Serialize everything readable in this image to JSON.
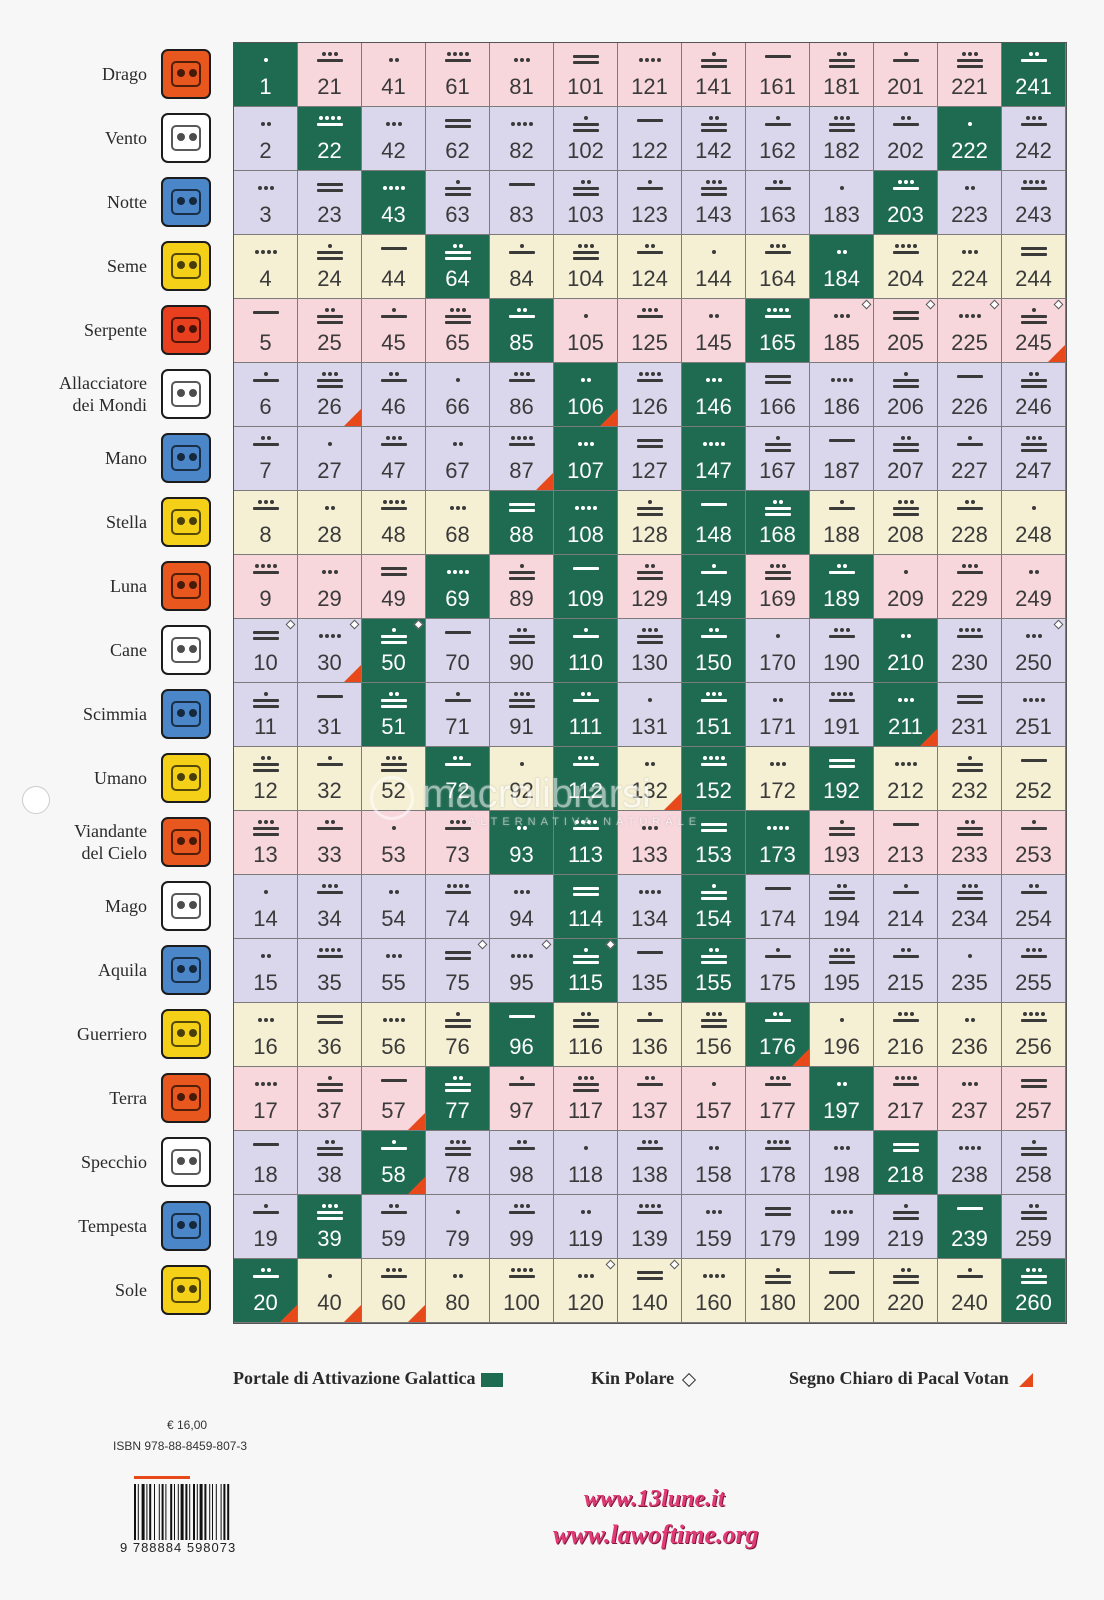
{
  "seals": [
    {
      "name": "Drago",
      "color": "#e8571e"
    },
    {
      "name": "Vento",
      "color": "#ffffff"
    },
    {
      "name": "Notte",
      "color": "#4a86c8"
    },
    {
      "name": "Seme",
      "color": "#f4d019"
    },
    {
      "name": "Serpente",
      "color": "#e8401e"
    },
    {
      "name": "Allacciatore\ndei Mondi",
      "color": "#ffffff"
    },
    {
      "name": "Mano",
      "color": "#4a86c8"
    },
    {
      "name": "Stella",
      "color": "#f4d019"
    },
    {
      "name": "Luna",
      "color": "#e8571e"
    },
    {
      "name": "Cane",
      "color": "#ffffff"
    },
    {
      "name": "Scimmia",
      "color": "#4a86c8"
    },
    {
      "name": "Umano",
      "color": "#f4d019"
    },
    {
      "name": "Viandante\ndel Cielo",
      "color": "#e8571e"
    },
    {
      "name": "Mago",
      "color": "#ffffff"
    },
    {
      "name": "Aquila",
      "color": "#4a86c8"
    },
    {
      "name": "Guerriero",
      "color": "#f4d019"
    },
    {
      "name": "Terra",
      "color": "#e8571e"
    },
    {
      "name": "Specchio",
      "color": "#ffffff"
    },
    {
      "name": "Tempesta",
      "color": "#4a86c8"
    },
    {
      "name": "Sole",
      "color": "#f4d019"
    }
  ],
  "kin_grid": {
    "columns": 13,
    "rows": 20,
    "colors": {
      "portal": "#1f6b52",
      "pink": "#f7d6dc",
      "violet": "#dad7ec",
      "cream": "#f5f0d3"
    },
    "portal_kins": [
      1,
      20,
      22,
      39,
      43,
      50,
      51,
      58,
      64,
      69,
      72,
      77,
      85,
      88,
      93,
      96,
      106,
      107,
      108,
      109,
      110,
      111,
      112,
      113,
      114,
      115,
      146,
      147,
      148,
      149,
      150,
      151,
      152,
      153,
      154,
      155,
      165,
      168,
      173,
      176,
      184,
      189,
      192,
      197,
      203,
      210,
      211,
      218,
      222,
      239,
      241,
      260
    ],
    "polar_kins": [
      10,
      30,
      50,
      75,
      95,
      115,
      120,
      140,
      185,
      205,
      225,
      245,
      250
    ],
    "pacal_kins": [
      20,
      26,
      30,
      40,
      57,
      58,
      60,
      87,
      106,
      132,
      176,
      211,
      245
    ]
  },
  "legend": {
    "portal": "Portale di Attivazione Galattica",
    "polar": "Kin Polare",
    "pacal": "Segno Chiaro di Pacal Votan"
  },
  "price": "€ 16,00",
  "isbn": "ISBN 978-88-8459-807-3",
  "barcode_digits": "9 788884 598073",
  "urls": [
    "www.13lune.it",
    "www.lawoftime.org"
  ],
  "watermark": {
    "title": "macrolibrarsi",
    "subtitle": "ALTERNATIVA NATURALE"
  }
}
